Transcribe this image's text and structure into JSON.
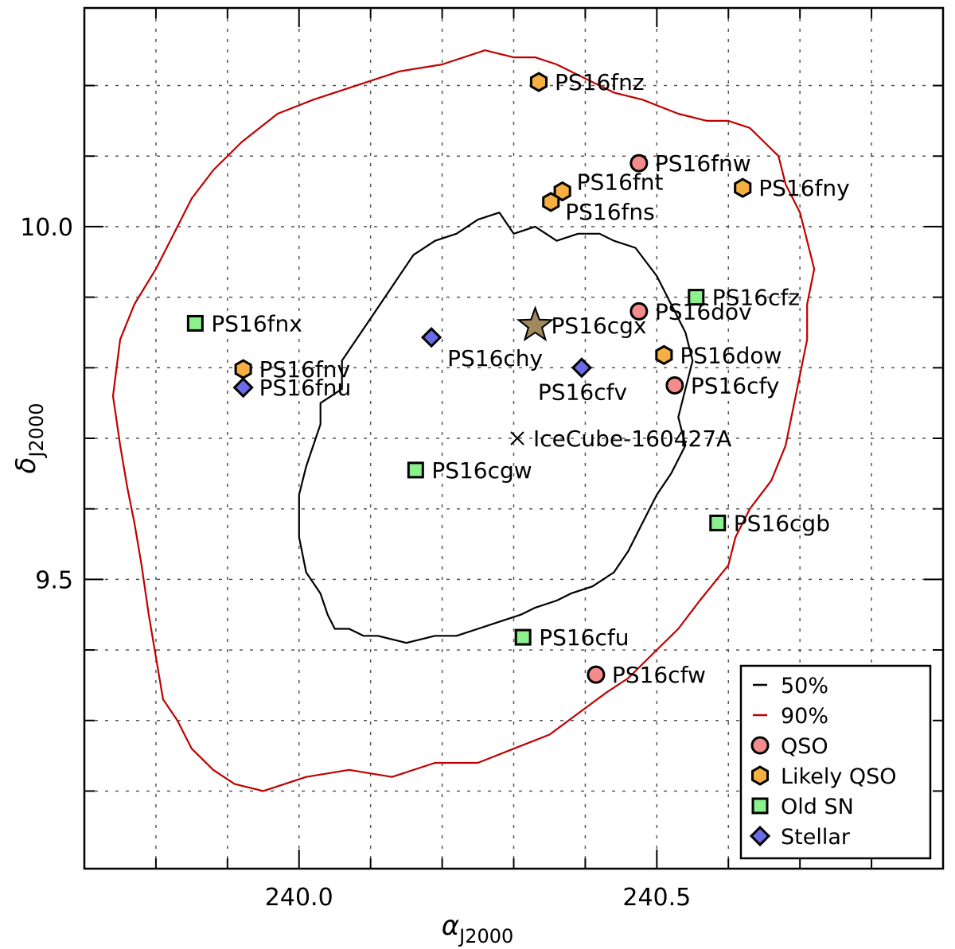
{
  "chart_data": {
    "type": "scatter",
    "title": "",
    "xlabel": "α",
    "xlabel_sub": "J2000",
    "ylabel": "δ",
    "ylabel_sub": "J2000",
    "xlim": [
      239.7,
      240.9
    ],
    "ylim": [
      9.09,
      10.31
    ],
    "x_tick_labels": [
      {
        "value": 240.0,
        "label": "240.0"
      },
      {
        "value": 240.5,
        "label": "240.5"
      }
    ],
    "y_tick_labels": [
      {
        "value": 10.0,
        "label": "10.0"
      },
      {
        "value": 9.5,
        "label": "9.5"
      }
    ],
    "grid_x": [
      239.8,
      239.9,
      240.0,
      240.1,
      240.2,
      240.3,
      240.4,
      240.5,
      240.6,
      240.7,
      240.8
    ],
    "grid_y": [
      9.2,
      9.3,
      9.4,
      9.5,
      9.6,
      9.7,
      9.8,
      9.9,
      10.0,
      10.1,
      10.2
    ],
    "grid": true,
    "contours": [
      {
        "name": "50%",
        "color": "#000000",
        "points": [
          [
            240.28,
            10.02
          ],
          [
            240.3,
            9.99
          ],
          [
            240.33,
            10.0
          ],
          [
            240.36,
            9.98
          ],
          [
            240.39,
            9.99
          ],
          [
            240.42,
            9.99
          ],
          [
            240.44,
            9.98
          ],
          [
            240.47,
            9.97
          ],
          [
            240.5,
            9.93
          ],
          [
            240.52,
            9.89
          ],
          [
            240.54,
            9.85
          ],
          [
            240.55,
            9.81
          ],
          [
            240.54,
            9.77
          ],
          [
            240.53,
            9.73
          ],
          [
            240.54,
            9.69
          ],
          [
            240.52,
            9.65
          ],
          [
            240.5,
            9.62
          ],
          [
            240.48,
            9.58
          ],
          [
            240.46,
            9.54
          ],
          [
            240.44,
            9.51
          ],
          [
            240.41,
            9.49
          ],
          [
            240.38,
            9.48
          ],
          [
            240.36,
            9.47
          ],
          [
            240.33,
            9.46
          ],
          [
            240.31,
            9.45
          ],
          [
            240.28,
            9.44
          ],
          [
            240.25,
            9.43
          ],
          [
            240.22,
            9.42
          ],
          [
            240.19,
            9.42
          ],
          [
            240.15,
            9.41
          ],
          [
            240.11,
            9.42
          ],
          [
            240.09,
            9.42
          ],
          [
            240.07,
            9.43
          ],
          [
            240.05,
            9.43
          ],
          [
            240.04,
            9.45
          ],
          [
            240.03,
            9.48
          ],
          [
            240.01,
            9.51
          ],
          [
            240.0,
            9.56
          ],
          [
            240.0,
            9.62
          ],
          [
            240.01,
            9.66
          ],
          [
            240.02,
            9.69
          ],
          [
            240.03,
            9.72
          ],
          [
            240.03,
            9.75
          ],
          [
            240.06,
            9.77
          ],
          [
            240.06,
            9.81
          ],
          [
            240.08,
            9.84
          ],
          [
            240.1,
            9.87
          ],
          [
            240.12,
            9.9
          ],
          [
            240.14,
            9.93
          ],
          [
            240.16,
            9.96
          ],
          [
            240.19,
            9.98
          ],
          [
            240.22,
            9.99
          ],
          [
            240.25,
            10.01
          ],
          [
            240.28,
            10.02
          ]
        ]
      },
      {
        "name": "90%",
        "color": "#c00000",
        "points": [
          [
            240.33,
            10.24
          ],
          [
            240.36,
            10.23
          ],
          [
            240.4,
            10.21
          ],
          [
            240.44,
            10.19
          ],
          [
            240.48,
            10.18
          ],
          [
            240.53,
            10.16
          ],
          [
            240.57,
            10.15
          ],
          [
            240.6,
            10.15
          ],
          [
            240.63,
            10.14
          ],
          [
            240.65,
            10.12
          ],
          [
            240.67,
            10.1
          ],
          [
            240.68,
            10.06
          ],
          [
            240.7,
            10.02
          ],
          [
            240.71,
            9.98
          ],
          [
            240.72,
            9.94
          ],
          [
            240.71,
            9.89
          ],
          [
            240.71,
            9.84
          ],
          [
            240.7,
            9.79
          ],
          [
            240.69,
            9.74
          ],
          [
            240.68,
            9.69
          ],
          [
            240.66,
            9.64
          ],
          [
            240.63,
            9.6
          ],
          [
            240.61,
            9.56
          ],
          [
            240.6,
            9.52
          ],
          [
            240.56,
            9.47
          ],
          [
            240.53,
            9.43
          ],
          [
            240.49,
            9.39
          ],
          [
            240.46,
            9.36
          ],
          [
            240.43,
            9.34
          ],
          [
            240.39,
            9.31
          ],
          [
            240.35,
            9.28
          ],
          [
            240.3,
            9.26
          ],
          [
            240.25,
            9.24
          ],
          [
            240.19,
            9.24
          ],
          [
            240.13,
            9.22
          ],
          [
            240.07,
            9.23
          ],
          [
            240.01,
            9.22
          ],
          [
            239.95,
            9.2
          ],
          [
            239.91,
            9.21
          ],
          [
            239.88,
            9.23
          ],
          [
            239.85,
            9.26
          ],
          [
            239.83,
            9.3
          ],
          [
            239.81,
            9.33
          ],
          [
            239.8,
            9.39
          ],
          [
            239.79,
            9.45
          ],
          [
            239.78,
            9.52
          ],
          [
            239.77,
            9.58
          ],
          [
            239.76,
            9.63
          ],
          [
            239.75,
            9.69
          ],
          [
            239.74,
            9.76
          ],
          [
            239.75,
            9.84
          ],
          [
            239.77,
            9.89
          ],
          [
            239.8,
            9.94
          ],
          [
            239.82,
            9.98
          ],
          [
            239.85,
            10.04
          ],
          [
            239.88,
            10.08
          ],
          [
            239.92,
            10.12
          ],
          [
            239.97,
            10.16
          ],
          [
            240.02,
            10.18
          ],
          [
            240.08,
            10.2
          ],
          [
            240.14,
            10.22
          ],
          [
            240.2,
            10.23
          ],
          [
            240.26,
            10.25
          ],
          [
            240.3,
            10.24
          ],
          [
            240.33,
            10.24
          ]
        ]
      }
    ],
    "marker_styles": {
      "qso": {
        "shape": "circle",
        "fill": "#f58c8c"
      },
      "likely_qso": {
        "shape": "hexagon",
        "fill": "#f5b041"
      },
      "old_sn": {
        "shape": "square",
        "fill": "#8cf08c"
      },
      "stellar": {
        "shape": "diamond",
        "fill": "#6b6be8"
      },
      "target": {
        "shape": "star",
        "fill": "#a08a5c"
      },
      "neutrino": {
        "shape": "cross",
        "fill": "#000000"
      }
    },
    "points": [
      {
        "name": "PS16fnz",
        "x": 240.335,
        "y": 10.205,
        "class": "likely_qso",
        "label_pos": "right"
      },
      {
        "name": "PS16fnw",
        "x": 240.475,
        "y": 10.09,
        "class": "qso",
        "label_pos": "right"
      },
      {
        "name": "PS16fnt",
        "x": 240.368,
        "y": 10.05,
        "class": "likely_qso",
        "label_pos": "right-up"
      },
      {
        "name": "PS16fns",
        "x": 240.352,
        "y": 10.035,
        "class": "likely_qso",
        "label_pos": "right-down"
      },
      {
        "name": "PS16fny",
        "x": 240.62,
        "y": 10.055,
        "class": "likely_qso",
        "label_pos": "right"
      },
      {
        "name": "PS16cfz",
        "x": 240.555,
        "y": 9.9,
        "class": "old_sn",
        "label_pos": "right"
      },
      {
        "name": "PS16dov",
        "x": 240.475,
        "y": 9.88,
        "class": "qso",
        "label_pos": "right"
      },
      {
        "name": "PS16cgx",
        "x": 240.33,
        "y": 9.86,
        "class": "target",
        "label_pos": "right"
      },
      {
        "name": "PS16fnx",
        "x": 239.855,
        "y": 9.863,
        "class": "old_sn",
        "label_pos": "right"
      },
      {
        "name": "PS16chy",
        "x": 240.185,
        "y": 9.843,
        "class": "stellar",
        "label_pos": "below-right"
      },
      {
        "name": "PS16dow",
        "x": 240.51,
        "y": 9.818,
        "class": "likely_qso",
        "label_pos": "right"
      },
      {
        "name": "PS16fnv",
        "x": 239.922,
        "y": 9.798,
        "class": "likely_qso",
        "label_pos": "right"
      },
      {
        "name": "PS16cfv",
        "x": 240.395,
        "y": 9.8,
        "class": "stellar",
        "label_pos": "below-left"
      },
      {
        "name": "PS16fnu",
        "x": 239.922,
        "y": 9.772,
        "class": "stellar",
        "label_pos": "right"
      },
      {
        "name": "PS16cfy",
        "x": 240.525,
        "y": 9.775,
        "class": "qso",
        "label_pos": "right"
      },
      {
        "name": "IceCube-160427A",
        "x": 240.305,
        "y": 9.7,
        "class": "neutrino",
        "label_pos": "right"
      },
      {
        "name": "PS16cgw",
        "x": 240.163,
        "y": 9.655,
        "class": "old_sn",
        "label_pos": "right"
      },
      {
        "name": "PS16cgb",
        "x": 240.585,
        "y": 9.58,
        "class": "old_sn",
        "label_pos": "right"
      },
      {
        "name": "PS16cfu",
        "x": 240.313,
        "y": 9.418,
        "class": "old_sn",
        "label_pos": "right"
      },
      {
        "name": "PS16cfw",
        "x": 240.415,
        "y": 9.365,
        "class": "qso",
        "label_pos": "right"
      }
    ],
    "legend": {
      "placement": "bottom-right",
      "entries": [
        {
          "label": "50%",
          "kind": "line",
          "color": "#000000"
        },
        {
          "label": "90%",
          "kind": "line",
          "color": "#c00000"
        },
        {
          "label": "QSO",
          "kind": "qso"
        },
        {
          "label": "Likely QSO",
          "kind": "likely_qso"
        },
        {
          "label": "Old SN",
          "kind": "old_sn"
        },
        {
          "label": "Stellar",
          "kind": "stellar"
        }
      ]
    }
  }
}
